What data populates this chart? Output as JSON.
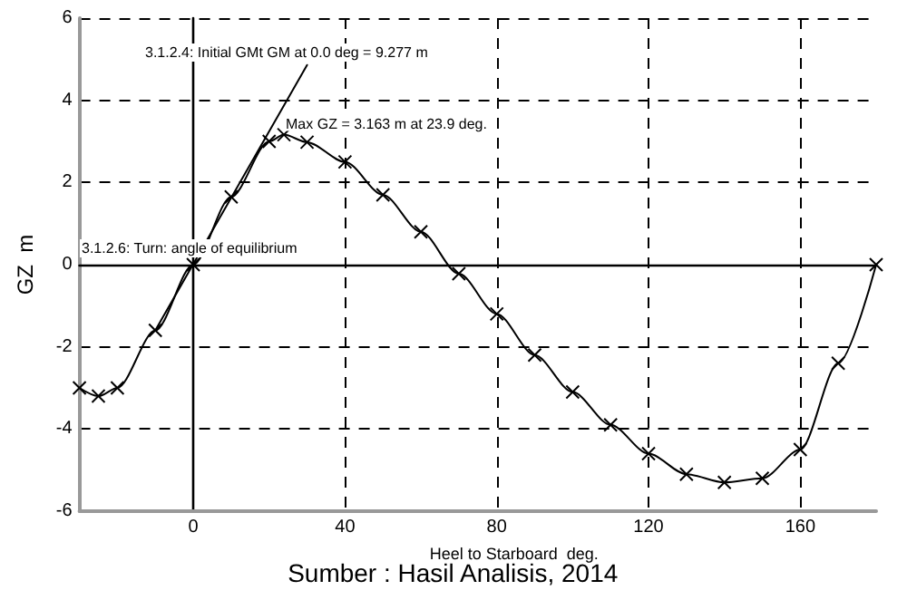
{
  "chart_data": {
    "type": "line",
    "xlabel": "Heel to Starboard  deg.",
    "ylabel": "GZ  m",
    "xlim": [
      -30,
      180
    ],
    "xticks": [
      0,
      40,
      80,
      120,
      160
    ],
    "ylim": [
      -6,
      6
    ],
    "yticks": [
      -6,
      -4,
      -2,
      0,
      2,
      4,
      6
    ],
    "series": [
      {
        "color": "#000000",
        "x": [
          -30,
          -25,
          -20,
          -10,
          0,
          10,
          20,
          23.9,
          30,
          40,
          50,
          60,
          70,
          80,
          90,
          100,
          110,
          120,
          130,
          140,
          150,
          160,
          170,
          180
        ],
        "values": [
          -3.0,
          -3.2,
          -3.0,
          -1.6,
          0,
          1.65,
          3.0,
          3.163,
          2.98,
          2.5,
          1.7,
          0.8,
          -0.22,
          -1.2,
          -2.2,
          -3.1,
          -3.9,
          -4.6,
          -5.1,
          -5.3,
          -5.2,
          -4.5,
          -2.4,
          0
        ],
        "marker": "cross"
      },
      {
        "color": "#000000",
        "x": [
          -10,
          30
        ],
        "values": [
          -1.6,
          4.86
        ],
        "marker": "none"
      }
    ],
    "annotations": [
      "3.1.2.4: Initial GMt GM at 0.0 deg = 9.277 m",
      {
        "text": "Max GZ = 3.163 m at 23.9 deg.",
        "x": 23.9,
        "y": 3.163
      },
      "3.1.2.6: Turn: angle of equilibrium",
      "Sumber : Hasil Analisis, 2014"
    ],
    "grid": true,
    "line_style": "solid"
  }
}
